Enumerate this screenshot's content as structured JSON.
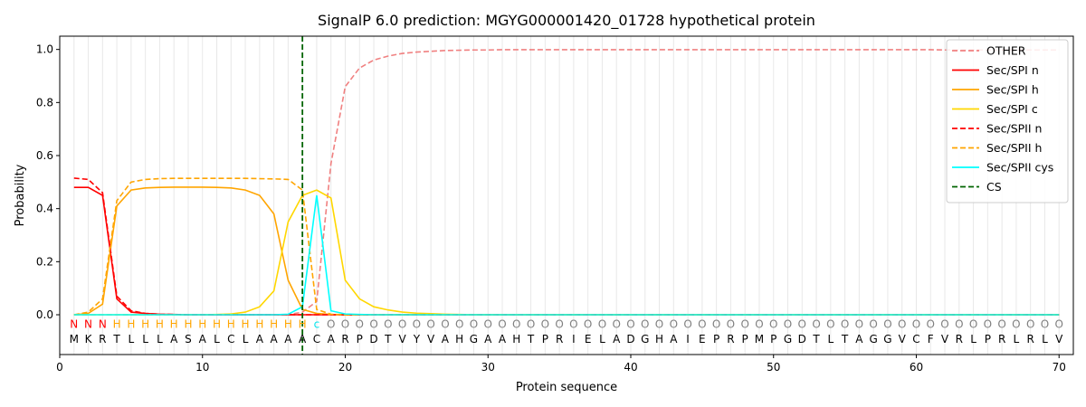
{
  "chart_data": {
    "type": "line",
    "title": "SignalP 6.0 prediction: MGYG000001420_01728 hypothetical protein",
    "xlabel": "Protein sequence",
    "ylabel": "Probability",
    "xlim": [
      0,
      71
    ],
    "ylim": [
      -0.15,
      1.05
    ],
    "x_ticks": [
      0,
      10,
      20,
      30,
      40,
      50,
      60,
      70
    ],
    "y_ticks": [
      0.0,
      0.2,
      0.4,
      0.6,
      0.8,
      1.0
    ],
    "x_tick_labels": [
      "0",
      "10",
      "20",
      "30",
      "40",
      "50",
      "60",
      "70"
    ],
    "y_tick_labels": [
      "0.0",
      "0.2",
      "0.4",
      "0.6",
      "0.8",
      "1.0"
    ],
    "legend_position": "top-right",
    "sequence": [
      "M",
      "K",
      "R",
      "T",
      "L",
      "L",
      "L",
      "A",
      "S",
      "A",
      "L",
      "C",
      "L",
      "A",
      "A",
      "A",
      "A",
      "C",
      "A",
      "R",
      "P",
      "D",
      "T",
      "V",
      "Y",
      "V",
      "A",
      "H",
      "G",
      "A",
      "A",
      "H",
      "T",
      "P",
      "R",
      "I",
      "E",
      "L",
      "A",
      "D",
      "G",
      "H",
      "A",
      "I",
      "E",
      "P",
      "R",
      "P",
      "M",
      "P",
      "G",
      "D",
      "T",
      "L",
      "T",
      "A",
      "G",
      "G",
      "V",
      "C",
      "F",
      "V",
      "R",
      "L",
      "P",
      "R",
      "L",
      "R",
      "L",
      "V"
    ],
    "region_labels": [
      "N",
      "N",
      "N",
      "H",
      "H",
      "H",
      "H",
      "H",
      "H",
      "H",
      "H",
      "H",
      "H",
      "H",
      "H",
      "H",
      "H",
      "c",
      "O",
      "O",
      "O",
      "O",
      "O",
      "O",
      "O",
      "O",
      "O",
      "O",
      "O",
      "O",
      "O",
      "O",
      "O",
      "O",
      "O",
      "O",
      "O",
      "O",
      "O",
      "O",
      "O",
      "O",
      "O",
      "O",
      "O",
      "O",
      "O",
      "O",
      "O",
      "O",
      "O",
      "O",
      "O",
      "O",
      "O",
      "O",
      "O",
      "O",
      "O",
      "O",
      "O",
      "O",
      "O",
      "O",
      "O",
      "O",
      "O",
      "O",
      "O",
      "O"
    ],
    "region_colors": {
      "N": "#ff0000",
      "H": "#ffa500",
      "c": "#00e5ee",
      "O": "#808080"
    },
    "cleavage_site": 17,
    "series": [
      {
        "name": "OTHER",
        "color": "#f08080",
        "dash": true,
        "values": [
          0.0,
          0.0,
          0.0,
          0.0,
          0.0,
          0.0,
          0.0,
          0.0,
          0.0,
          0.0,
          0.0,
          0.0,
          0.0,
          0.0,
          0.0,
          0.0,
          0.01,
          0.05,
          0.57,
          0.86,
          0.93,
          0.96,
          0.975,
          0.985,
          0.99,
          0.993,
          0.996,
          0.997,
          0.998,
          0.998,
          0.999,
          0.999,
          0.999,
          0.999,
          0.999,
          0.999,
          0.999,
          0.999,
          0.999,
          0.999,
          0.999,
          0.999,
          0.999,
          0.999,
          0.999,
          0.999,
          0.999,
          0.999,
          0.999,
          0.999,
          0.999,
          0.999,
          0.999,
          0.999,
          0.999,
          0.999,
          0.999,
          0.999,
          0.999,
          0.999,
          0.999,
          0.998,
          0.998,
          0.998,
          0.998,
          0.998,
          0.998,
          0.998,
          0.998,
          0.998
        ]
      },
      {
        "name": "Sec/SPI n",
        "color": "#ff0000",
        "dash": false,
        "values": [
          0.48,
          0.48,
          0.45,
          0.06,
          0.01,
          0.005,
          0.002,
          0.001,
          0,
          0,
          0,
          0,
          0,
          0,
          0,
          0,
          0,
          0,
          0,
          0,
          0,
          0,
          0,
          0,
          0,
          0,
          0,
          0,
          0,
          0,
          0,
          0,
          0,
          0,
          0,
          0,
          0,
          0,
          0,
          0,
          0,
          0,
          0,
          0,
          0,
          0,
          0,
          0,
          0,
          0,
          0,
          0,
          0,
          0,
          0,
          0,
          0,
          0,
          0,
          0,
          0,
          0,
          0,
          0,
          0,
          0,
          0,
          0,
          0,
          0
        ]
      },
      {
        "name": "Sec/SPI h",
        "color": "#ffa500",
        "dash": false,
        "values": [
          0.0,
          0.005,
          0.04,
          0.41,
          0.47,
          0.478,
          0.48,
          0.481,
          0.481,
          0.481,
          0.48,
          0.478,
          0.47,
          0.45,
          0.38,
          0.13,
          0.02,
          0.005,
          0.001,
          0,
          0,
          0,
          0,
          0,
          0,
          0,
          0,
          0,
          0,
          0,
          0,
          0,
          0,
          0,
          0,
          0,
          0,
          0,
          0,
          0,
          0,
          0,
          0,
          0,
          0,
          0,
          0,
          0,
          0,
          0,
          0,
          0,
          0,
          0,
          0,
          0,
          0,
          0,
          0,
          0,
          0,
          0,
          0,
          0,
          0,
          0,
          0,
          0,
          0,
          0
        ]
      },
      {
        "name": "Sec/SPI c",
        "color": "#ffd700",
        "dash": false,
        "values": [
          0,
          0,
          0,
          0,
          0,
          0,
          0,
          0,
          0,
          0,
          0.001,
          0.003,
          0.01,
          0.03,
          0.09,
          0.35,
          0.45,
          0.47,
          0.44,
          0.13,
          0.06,
          0.03,
          0.018,
          0.01,
          0.006,
          0.004,
          0.002,
          0.001,
          0,
          0,
          0,
          0,
          0,
          0,
          0,
          0,
          0,
          0,
          0,
          0,
          0,
          0,
          0,
          0,
          0,
          0,
          0,
          0,
          0,
          0,
          0,
          0,
          0,
          0,
          0,
          0,
          0,
          0,
          0,
          0,
          0,
          0,
          0,
          0,
          0,
          0,
          0,
          0,
          0,
          0
        ]
      },
      {
        "name": "Sec/SPII n",
        "color": "#ff0000",
        "dash": true,
        "values": [
          0.515,
          0.51,
          0.46,
          0.07,
          0.015,
          0.005,
          0.002,
          0.001,
          0,
          0,
          0,
          0,
          0,
          0,
          0,
          0,
          0,
          0,
          0,
          0,
          0,
          0,
          0,
          0,
          0,
          0,
          0,
          0,
          0,
          0,
          0,
          0,
          0,
          0,
          0,
          0,
          0,
          0,
          0,
          0,
          0,
          0,
          0,
          0,
          0,
          0,
          0,
          0,
          0,
          0,
          0,
          0,
          0,
          0,
          0,
          0,
          0,
          0,
          0,
          0,
          0,
          0,
          0,
          0,
          0,
          0,
          0,
          0,
          0,
          0
        ]
      },
      {
        "name": "Sec/SPII h",
        "color": "#ffa500",
        "dash": true,
        "values": [
          0.0,
          0.01,
          0.06,
          0.43,
          0.5,
          0.51,
          0.513,
          0.514,
          0.514,
          0.514,
          0.514,
          0.514,
          0.514,
          0.513,
          0.512,
          0.51,
          0.47,
          0.02,
          0.002,
          0,
          0,
          0,
          0,
          0,
          0,
          0,
          0,
          0,
          0,
          0,
          0,
          0,
          0,
          0,
          0,
          0,
          0,
          0,
          0,
          0,
          0,
          0,
          0,
          0,
          0,
          0,
          0,
          0,
          0,
          0,
          0,
          0,
          0,
          0,
          0,
          0,
          0,
          0,
          0,
          0,
          0,
          0,
          0,
          0,
          0,
          0,
          0,
          0,
          0,
          0
        ]
      },
      {
        "name": "Sec/SPII cys",
        "color": "#00ffff",
        "dash": false,
        "values": [
          0,
          0,
          0,
          0,
          0,
          0,
          0,
          0,
          0,
          0,
          0,
          0,
          0,
          0,
          0,
          0.002,
          0.03,
          0.45,
          0.015,
          0.003,
          0.001,
          0,
          0,
          0,
          0,
          0,
          0,
          0,
          0,
          0,
          0,
          0,
          0,
          0,
          0,
          0,
          0,
          0,
          0,
          0,
          0,
          0,
          0,
          0,
          0,
          0,
          0,
          0,
          0,
          0,
          0,
          0,
          0,
          0,
          0,
          0,
          0,
          0,
          0,
          0,
          0,
          0,
          0,
          0,
          0,
          0,
          0,
          0,
          0,
          0
        ]
      },
      {
        "name": "CS",
        "color": "#006400",
        "dash": true,
        "values": []
      }
    ]
  }
}
